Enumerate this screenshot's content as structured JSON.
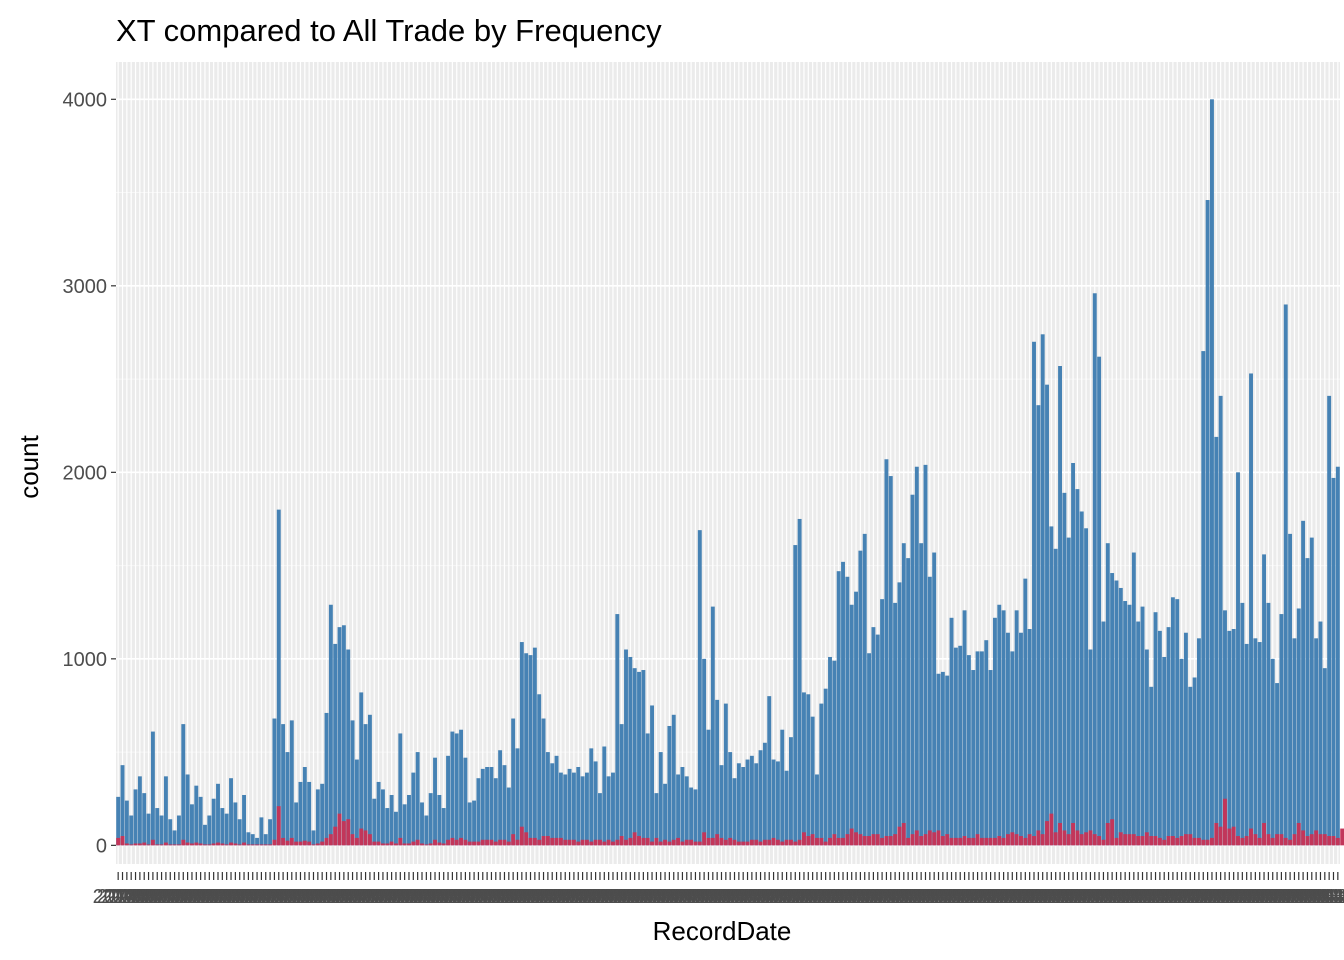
{
  "chart_data": {
    "type": "bar",
    "title": "XT compared to All Trade by Frequency",
    "xlabel": "RecordDate",
    "ylabel": "count",
    "ylim": [
      -100,
      4200
    ],
    "y_ticks": [
      0,
      1000,
      2000,
      3000,
      4000
    ],
    "grid": true,
    "legend": "none",
    "x_tick_label_sample": "2018-",
    "series": [
      {
        "color": "#4682b4",
        "values": [
          260,
          430,
          240,
          160,
          300,
          370,
          280,
          170,
          610,
          200,
          160,
          370,
          140,
          80,
          160,
          650,
          380,
          220,
          320,
          260,
          110,
          160,
          250,
          330,
          200,
          170,
          360,
          230,
          140,
          270,
          70,
          60,
          40,
          150,
          60,
          140,
          680,
          1800,
          650,
          500,
          670,
          230,
          340,
          420,
          340,
          80,
          300,
          330,
          710,
          1290,
          1080,
          1170,
          1180,
          1050,
          670,
          460,
          820,
          650,
          700,
          250,
          340,
          300,
          200,
          270,
          180,
          600,
          220,
          270,
          390,
          500,
          230,
          160,
          280,
          470,
          270,
          200,
          480,
          610,
          600,
          620,
          470,
          230,
          240,
          360,
          410,
          420,
          420,
          360,
          510,
          430,
          310,
          680,
          520,
          1090,
          1030,
          1020,
          1060,
          810,
          680,
          500,
          440,
          480,
          390,
          380,
          410,
          390,
          420,
          370,
          390,
          520,
          450,
          280,
          530,
          370,
          390,
          1240,
          650,
          1050,
          1010,
          950,
          930,
          940,
          600,
          750,
          280,
          500,
          330,
          640,
          700,
          380,
          420,
          370,
          310,
          300,
          1690,
          1000,
          620,
          1280,
          780,
          430,
          760,
          500,
          360,
          440,
          420,
          460,
          480,
          440,
          510,
          550,
          800,
          460,
          450,
          620,
          400,
          580,
          1610,
          1750,
          820,
          810,
          690,
          380,
          760,
          840,
          1010,
          990,
          1470,
          1520,
          1440,
          1290,
          1360,
          1580,
          1670,
          1030,
          1170,
          1130,
          1320,
          2070,
          1980,
          1300,
          1410,
          1620,
          1540,
          1880,
          2030,
          1620,
          2040,
          1440,
          1570,
          920,
          930,
          910,
          1220,
          1060,
          1070,
          1260,
          1020,
          940,
          1040,
          1040,
          1100,
          940,
          1220,
          1290,
          1260,
          1140,
          1040,
          1260,
          1140,
          1430,
          1160,
          2700,
          2360,
          2740,
          2470,
          1710,
          1590,
          2570,
          1890,
          1650,
          2050,
          1910,
          1790,
          1700,
          1050,
          2960,
          2620,
          1200,
          1620,
          1460,
          1420,
          1380,
          1310,
          1290,
          1570,
          1200,
          1280,
          1050,
          850,
          1250,
          1150,
          1010,
          1170,
          1330,
          1320,
          1000,
          1140,
          850,
          900,
          1110,
          2650,
          3460,
          4000,
          2190,
          2410,
          1260,
          1150,
          1160,
          2000,
          1300,
          1080,
          2530,
          1110,
          1090,
          1560,
          1300,
          1000,
          870,
          1240,
          2900,
          1670,
          1110,
          1270,
          1740,
          1540,
          1650,
          1110,
          1200,
          950,
          2410,
          1970,
          2030
        ]
      },
      {
        "color": "#c2365a",
        "values": [
          40,
          50,
          10,
          5,
          10,
          10,
          15,
          5,
          30,
          5,
          5,
          15,
          5,
          5,
          5,
          30,
          15,
          10,
          15,
          10,
          5,
          5,
          10,
          15,
          10,
          5,
          15,
          10,
          5,
          15,
          5,
          5,
          5,
          5,
          5,
          5,
          30,
          210,
          40,
          25,
          40,
          20,
          20,
          25,
          20,
          5,
          10,
          20,
          40,
          60,
          100,
          170,
          130,
          140,
          60,
          40,
          90,
          80,
          60,
          20,
          20,
          10,
          10,
          20,
          10,
          40,
          10,
          10,
          20,
          30,
          10,
          5,
          10,
          30,
          15,
          10,
          30,
          40,
          30,
          40,
          30,
          20,
          20,
          20,
          30,
          30,
          30,
          20,
          30,
          30,
          20,
          60,
          30,
          100,
          70,
          40,
          40,
          30,
          50,
          50,
          40,
          40,
          40,
          30,
          30,
          30,
          20,
          30,
          30,
          20,
          30,
          30,
          20,
          30,
          20,
          30,
          50,
          30,
          40,
          70,
          50,
          40,
          40,
          20,
          40,
          20,
          30,
          20,
          30,
          40,
          20,
          30,
          30,
          20,
          20,
          70,
          40,
          40,
          60,
          40,
          30,
          40,
          30,
          20,
          20,
          20,
          30,
          30,
          20,
          30,
          30,
          40,
          30,
          20,
          30,
          30,
          20,
          30,
          70,
          50,
          60,
          40,
          40,
          20,
          40,
          60,
          40,
          40,
          60,
          90,
          70,
          60,
          50,
          50,
          60,
          60,
          40,
          50,
          50,
          60,
          100,
          120,
          40,
          60,
          80,
          50,
          60,
          80,
          70,
          80,
          50,
          60,
          40,
          40,
          40,
          50,
          40,
          40,
          60,
          40,
          40,
          40,
          40,
          50,
          40,
          60,
          70,
          60,
          50,
          40,
          60,
          50,
          80,
          60,
          130,
          170,
          70,
          120,
          80,
          60,
          120,
          80,
          60,
          70,
          80,
          60,
          50,
          30,
          120,
          140,
          40,
          70,
          60,
          60,
          60,
          50,
          50,
          70,
          50,
          50,
          40,
          30,
          50,
          50,
          40,
          50,
          60,
          60,
          40,
          40,
          30,
          30,
          40,
          120,
          100,
          250,
          90,
          100,
          50,
          40,
          50,
          90,
          60,
          40,
          120,
          60,
          40,
          60,
          60,
          40,
          30,
          60,
          120,
          80,
          50,
          60,
          80,
          60,
          60,
          50,
          50,
          40,
          90,
          70,
          70
        ]
      }
    ]
  }
}
